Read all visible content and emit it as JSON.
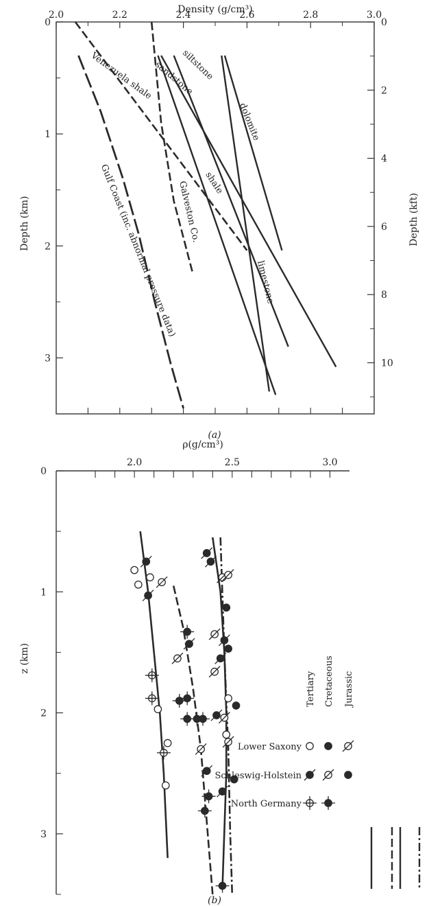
{
  "chart_data": [
    {
      "panel": "(a)",
      "type": "line",
      "xlabel": "Density (g/cm³)",
      "ylabel": "Depth (km)",
      "y2label": "Depth (kft)",
      "xlim": [
        2.0,
        3.0
      ],
      "ylim": [
        0,
        3.5
      ],
      "y2lim": [
        0,
        11.5
      ],
      "xticks": [
        "2.0",
        "2.2",
        "2.4",
        "2.6",
        "2.8",
        "3.0"
      ],
      "yticks": [
        "0",
        "1",
        "2",
        "3"
      ],
      "y2ticks": [
        "0",
        "2",
        "4",
        "6",
        "8",
        "10"
      ],
      "grid": false,
      "series": [
        {
          "name": "Venezuela shale",
          "style": "dashed",
          "x": [
            2.06,
            2.6
          ],
          "y": [
            0.0,
            2.04
          ]
        },
        {
          "name": "Galveston Co.",
          "style": "dashed",
          "x": [
            2.3,
            2.33,
            2.37,
            2.43
          ],
          "y": [
            0.0,
            0.9,
            1.6,
            2.25
          ]
        },
        {
          "name": "Gulf Coast (inc. abnormal pressure data)",
          "style": "long-dashed",
          "x": [
            2.07,
            2.14,
            2.21,
            2.26,
            2.31,
            2.36,
            2.4
          ],
          "y": [
            0.3,
            0.8,
            1.4,
            1.9,
            2.5,
            3.05,
            3.45
          ]
        },
        {
          "name": "sandstone",
          "style": "solid",
          "x": [
            2.32,
            2.69
          ],
          "y": [
            0.3,
            3.33
          ]
        },
        {
          "name": "shale",
          "style": "solid",
          "x": [
            2.33,
            2.88
          ],
          "y": [
            0.3,
            3.08
          ]
        },
        {
          "name": "siltstone",
          "style": "solid",
          "x": [
            2.37,
            2.73
          ],
          "y": [
            0.3,
            2.9
          ]
        },
        {
          "name": "dolomite",
          "style": "solid",
          "x": [
            2.53,
            2.71
          ],
          "y": [
            0.3,
            2.04
          ]
        },
        {
          "name": "limestone",
          "style": "solid",
          "x": [
            2.52,
            2.67
          ],
          "y": [
            0.3,
            3.3
          ]
        }
      ]
    },
    {
      "panel": "(b)",
      "type": "scatter",
      "xlabel": "ρ(g/cm³)",
      "ylabel": "z (km)",
      "xlim": [
        1.6,
        3.1
      ],
      "ylim": [
        0,
        3.5
      ],
      "xticks": [
        "2.0",
        "2.5",
        "3.0"
      ],
      "yticks": [
        "0",
        "1",
        "2",
        "3"
      ],
      "grid": false,
      "legend": {
        "placement": "right",
        "column_headers": [
          "Tertiary",
          "Cretaceous",
          "Jurassic"
        ],
        "rows": [
          "Lower Saxony",
          "Schleswig-Holstein",
          "North Germany"
        ]
      },
      "curves": [
        {
          "age": "Tertiary",
          "style": "solid",
          "x": [
            2.03,
            2.07,
            2.1,
            2.13,
            2.15,
            2.17
          ],
          "y": [
            0.5,
            1.0,
            1.5,
            2.0,
            2.5,
            3.2
          ]
        },
        {
          "age": "Tertiary",
          "style": "solid",
          "x": [
            2.4,
            2.44,
            2.46,
            2.47,
            2.47,
            2.45
          ],
          "y": [
            0.55,
            1.0,
            1.5,
            2.0,
            2.5,
            3.45
          ]
        },
        {
          "age": "Cretaceous",
          "style": "dashed",
          "x": [
            2.2,
            2.25,
            2.3,
            2.34,
            2.37,
            2.4
          ],
          "y": [
            0.95,
            1.3,
            1.8,
            2.3,
            2.9,
            3.5
          ]
        },
        {
          "age": "Jurassic",
          "style": "dash-dot",
          "x": [
            2.44,
            2.46,
            2.48,
            2.49,
            2.5
          ],
          "y": [
            0.55,
            1.5,
            2.3,
            3.0,
            3.5
          ]
        }
      ],
      "points": [
        {
          "x": 2.0,
          "y": 0.82,
          "sym": "open-circle"
        },
        {
          "x": 2.02,
          "y": 0.94,
          "sym": "open-circle"
        },
        {
          "x": 2.08,
          "y": 0.88,
          "sym": "open-circle"
        },
        {
          "x": 2.12,
          "y": 1.97,
          "sym": "open-circle"
        },
        {
          "x": 2.17,
          "y": 2.25,
          "sym": "open-circle"
        },
        {
          "x": 2.16,
          "y": 2.6,
          "sym": "open-circle"
        },
        {
          "x": 2.48,
          "y": 1.88,
          "sym": "open-circle"
        },
        {
          "x": 2.47,
          "y": 2.18,
          "sym": "open-circle"
        },
        {
          "x": 2.06,
          "y": 0.75,
          "sym": "filled-slash"
        },
        {
          "x": 2.07,
          "y": 1.03,
          "sym": "filled-slash"
        },
        {
          "x": 2.37,
          "y": 0.68,
          "sym": "filled-slash"
        },
        {
          "x": 2.39,
          "y": 0.75,
          "sym": "filled-slash"
        },
        {
          "x": 2.28,
          "y": 1.43,
          "sym": "filled-slash"
        },
        {
          "x": 2.44,
          "y": 1.55,
          "sym": "filled-slash"
        },
        {
          "x": 2.42,
          "y": 2.02,
          "sym": "filled-slash"
        },
        {
          "x": 2.46,
          "y": 1.4,
          "sym": "filled-slash"
        },
        {
          "x": 2.37,
          "y": 2.48,
          "sym": "filled-slash"
        },
        {
          "x": 2.45,
          "y": 2.65,
          "sym": "filled-slash"
        },
        {
          "x": 2.14,
          "y": 0.92,
          "sym": "open-slash"
        },
        {
          "x": 2.22,
          "y": 1.55,
          "sym": "open-slash"
        },
        {
          "x": 2.45,
          "y": 0.88,
          "sym": "open-slash"
        },
        {
          "x": 2.48,
          "y": 0.86,
          "sym": "open-slash"
        },
        {
          "x": 2.41,
          "y": 1.35,
          "sym": "open-slash"
        },
        {
          "x": 2.41,
          "y": 1.66,
          "sym": "open-slash"
        },
        {
          "x": 2.46,
          "y": 2.04,
          "sym": "open-slash"
        },
        {
          "x": 2.48,
          "y": 2.24,
          "sym": "open-slash"
        },
        {
          "x": 2.34,
          "y": 2.3,
          "sym": "open-slash"
        },
        {
          "x": 2.47,
          "y": 1.13,
          "sym": "filled"
        },
        {
          "x": 2.48,
          "y": 1.47,
          "sym": "filled"
        },
        {
          "x": 2.52,
          "y": 1.94,
          "sym": "filled"
        },
        {
          "x": 2.51,
          "y": 2.55,
          "sym": "filled"
        },
        {
          "x": 2.09,
          "y": 1.69,
          "sym": "open-cross"
        },
        {
          "x": 2.09,
          "y": 1.88,
          "sym": "open-cross"
        },
        {
          "x": 2.15,
          "y": 2.33,
          "sym": "open-cross"
        },
        {
          "x": 2.27,
          "y": 1.33,
          "sym": "filled-cross"
        },
        {
          "x": 2.23,
          "y": 1.9,
          "sym": "filled-cross"
        },
        {
          "x": 2.27,
          "y": 1.88,
          "sym": "filled-cross"
        },
        {
          "x": 2.27,
          "y": 2.05,
          "sym": "filled-cross"
        },
        {
          "x": 2.32,
          "y": 2.05,
          "sym": "filled-cross"
        },
        {
          "x": 2.35,
          "y": 2.05,
          "sym": "filled-cross"
        },
        {
          "x": 2.38,
          "y": 2.69,
          "sym": "filled-cross"
        },
        {
          "x": 2.36,
          "y": 2.81,
          "sym": "filled-cross"
        },
        {
          "x": 2.45,
          "y": 3.43,
          "sym": "filled-cross"
        }
      ]
    }
  ]
}
